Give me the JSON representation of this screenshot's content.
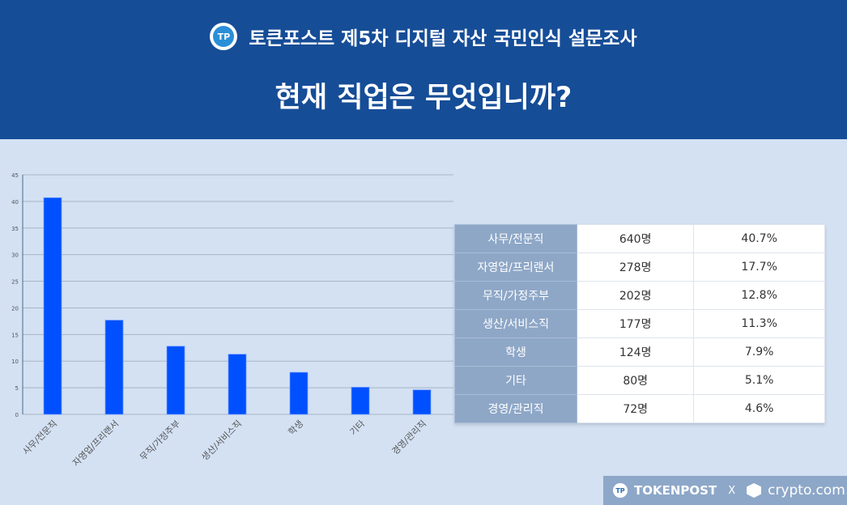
{
  "header": {
    "subtitle": "토큰포스트 제5차 디지털 자산 국민인식 설문조사",
    "title": "현재 직업은 무엇입니까?",
    "logo_text": "TP"
  },
  "chart_data": {
    "type": "bar",
    "categories": [
      "사무/전문직",
      "자영업/프리랜서",
      "무직/가정주부",
      "생산/서비스직",
      "학생",
      "기타",
      "경영/관리직"
    ],
    "values": [
      40.7,
      17.7,
      12.8,
      11.3,
      7.9,
      5.1,
      4.6
    ],
    "ylim": [
      0,
      45
    ],
    "yticks": [
      0,
      5,
      10,
      15,
      20,
      25,
      30,
      35,
      40,
      45
    ],
    "title": "",
    "xlabel": "",
    "ylabel": "",
    "grid": true,
    "bar_color": "#0050ff"
  },
  "table": {
    "rows": [
      [
        "사무/전문직",
        "640명",
        "40.7%"
      ],
      [
        "자영업/프리랜서",
        "278명",
        "17.7%"
      ],
      [
        "무직/가정주부",
        "202명",
        "12.8%"
      ],
      [
        "생산/서비스직",
        "177명",
        "11.3%"
      ],
      [
        "학생",
        "124명",
        "7.9%"
      ],
      [
        "기타",
        "80명",
        "5.1%"
      ],
      [
        "경영/관리직",
        "72명",
        "4.6%"
      ]
    ]
  },
  "footer": {
    "brand1": "TOKENPOST",
    "sep": "X",
    "brand2": "crypto.com"
  }
}
